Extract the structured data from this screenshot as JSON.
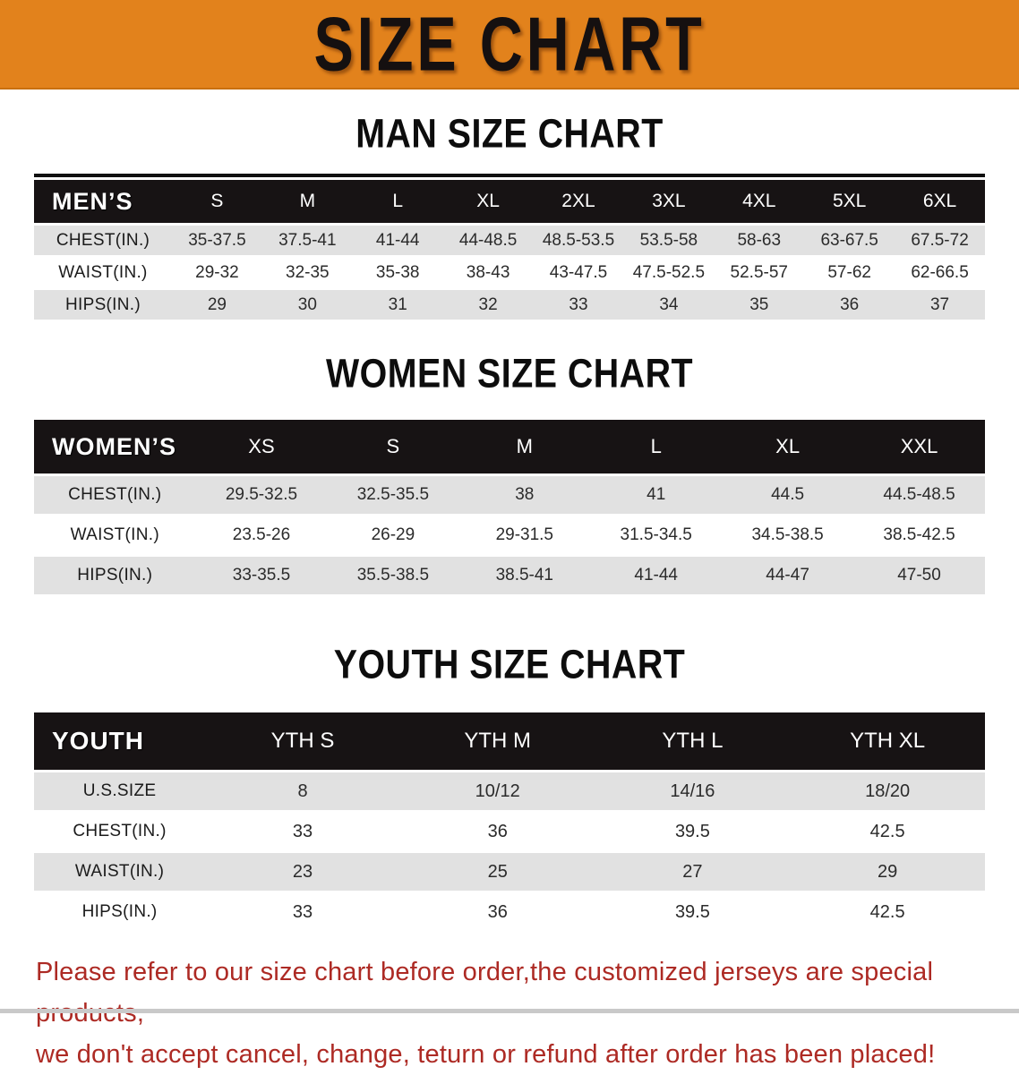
{
  "banner": {
    "title": "SIZE CHART"
  },
  "colors": {
    "banner_bg": "#E2821C",
    "header_bar": "#171314",
    "row_gray": "#e1e1e1",
    "footer_red": "#AD2A24"
  },
  "men": {
    "heading": "MAN SIZE CHART",
    "header_label": "MEN’S",
    "columns": [
      "S",
      "M",
      "L",
      "XL",
      "2XL",
      "3XL",
      "4XL",
      "5XL",
      "6XL"
    ],
    "rows": [
      {
        "label": "CHEST(IN.)",
        "values": [
          "35-37.5",
          "37.5-41",
          "41-44",
          "44-48.5",
          "48.5-53.5",
          "53.5-58",
          "58-63",
          "63-67.5",
          "67.5-72"
        ]
      },
      {
        "label": "WAIST(IN.)",
        "values": [
          "29-32",
          "32-35",
          "35-38",
          "38-43",
          "43-47.5",
          "47.5-52.5",
          "52.5-57",
          "57-62",
          "62-66.5"
        ]
      },
      {
        "label": "HIPS(IN.)",
        "values": [
          "29",
          "30",
          "31",
          "32",
          "33",
          "34",
          "35",
          "36",
          "37"
        ]
      }
    ]
  },
  "women": {
    "heading": "WOMEN SIZE CHART",
    "header_label": "WOMEN’S",
    "columns": [
      "XS",
      "S",
      "M",
      "L",
      "XL",
      "XXL"
    ],
    "rows": [
      {
        "label": "CHEST(IN.)",
        "values": [
          "29.5-32.5",
          "32.5-35.5",
          "38",
          "41",
          "44.5",
          "44.5-48.5"
        ]
      },
      {
        "label": "WAIST(IN.)",
        "values": [
          "23.5-26",
          "26-29",
          "29-31.5",
          "31.5-34.5",
          "34.5-38.5",
          "38.5-42.5"
        ]
      },
      {
        "label": "HIPS(IN.)",
        "values": [
          "33-35.5",
          "35.5-38.5",
          "38.5-41",
          "41-44",
          "44-47",
          "47-50"
        ]
      }
    ]
  },
  "youth": {
    "heading": "YOUTH SIZE CHART",
    "header_label": "YOUTH",
    "columns": [
      "YTH S",
      "YTH M",
      "YTH L",
      "YTH XL"
    ],
    "rows": [
      {
        "label": "U.S.SIZE",
        "values": [
          "8",
          "10/12",
          "14/16",
          "18/20"
        ]
      },
      {
        "label": "CHEST(IN.)",
        "values": [
          "33",
          "36",
          "39.5",
          "42.5"
        ]
      },
      {
        "label": "WAIST(IN.)",
        "values": [
          "23",
          "25",
          "27",
          "29"
        ]
      },
      {
        "label": "HIPS(IN.)",
        "values": [
          "33",
          "36",
          "39.5",
          "42.5"
        ]
      }
    ]
  },
  "footer": {
    "line1": "Please refer to our size chart before order,the customized jerseys are special products,",
    "line2": "we don't accept cancel, change, teturn or refund after order has been placed!"
  }
}
